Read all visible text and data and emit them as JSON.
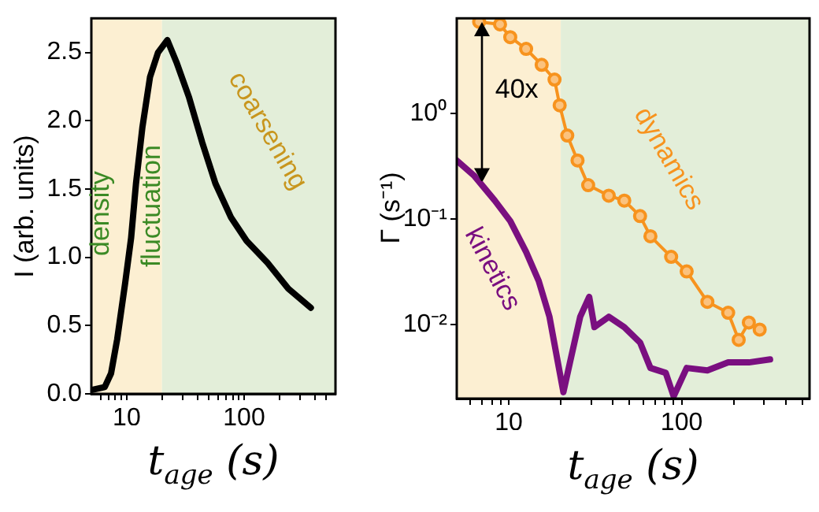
{
  "chart_data": [
    {
      "type": "line",
      "xlabel": "t$_{age}$ (s)",
      "ylabel": "I (arb. units)",
      "log": "x",
      "grid": false,
      "legend": false,
      "xlim": [
        5,
        600
      ],
      "ylim": [
        0,
        2.75
      ],
      "xticks": [
        {
          "value": 6,
          "label": null
        },
        {
          "value": 7,
          "label": null
        },
        {
          "value": 8,
          "label": null
        },
        {
          "value": 9,
          "label": null
        },
        {
          "value": 10,
          "label": "10"
        },
        {
          "value": 20,
          "label": null
        },
        {
          "value": 30,
          "label": null
        },
        {
          "value": 40,
          "label": null
        },
        {
          "value": 50,
          "label": null
        },
        {
          "value": 60,
          "label": null
        },
        {
          "value": 70,
          "label": null
        },
        {
          "value": 80,
          "label": null
        },
        {
          "value": 90,
          "label": null
        },
        {
          "value": 100,
          "label": "100"
        },
        {
          "value": 200,
          "label": null
        },
        {
          "value": 300,
          "label": null
        },
        {
          "value": 400,
          "label": null
        },
        {
          "value": 500,
          "label": null
        }
      ],
      "yticks": [
        {
          "value": 0,
          "label": "0.0"
        },
        0.5,
        {
          "value": 1,
          "label": "1.0"
        },
        1.5,
        {
          "value": 2,
          "label": "2.0"
        },
        2.5
      ],
      "bands": [
        {
          "axis": "x",
          "from": 5,
          "to": 20,
          "color": "#fcefd2"
        },
        {
          "axis": "x",
          "from": 20,
          "to": 600,
          "color": "#e3eed9"
        }
      ],
      "annotations": [
        "density",
        "fluctuation",
        "coarsening"
      ],
      "series": [
        {
          "color": "#000000",
          "marker": "none",
          "x": [
            5.1,
            6.5,
            7.36,
            8.3,
            9.7,
            10.9,
            12.0,
            13.6,
            15.8,
            18.5,
            22.2,
            26.5,
            34,
            44,
            57,
            77.5,
            105,
            158,
            238,
            370
          ],
          "values": [
            0.03,
            0.05,
            0.15,
            0.4,
            0.81,
            1.14,
            1.54,
            1.95,
            2.32,
            2.5,
            2.59,
            2.43,
            2.17,
            1.84,
            1.54,
            1.29,
            1.12,
            0.96,
            0.77,
            0.63
          ]
        }
      ]
    },
    {
      "type": "line",
      "xlabel": "t$_{age}$ (s)",
      "ylabel": "Γ (s⁻¹)",
      "log": "xy",
      "grid": false,
      "legend": false,
      "xlim": [
        5,
        550
      ],
      "ylim": [
        0.002,
        8
      ],
      "xticks": [
        {
          "value": 6,
          "label": null
        },
        {
          "value": 7,
          "label": null
        },
        {
          "value": 8,
          "label": null
        },
        {
          "value": 9,
          "label": null
        },
        {
          "value": 10,
          "label": "10"
        },
        {
          "value": 20,
          "label": null
        },
        {
          "value": 30,
          "label": null
        },
        {
          "value": 40,
          "label": null
        },
        {
          "value": 50,
          "label": null
        },
        {
          "value": 60,
          "label": null
        },
        {
          "value": 70,
          "label": null
        },
        {
          "value": 80,
          "label": null
        },
        {
          "value": 90,
          "label": null
        },
        {
          "value": 100,
          "label": "100"
        },
        {
          "value": 200,
          "label": null
        },
        {
          "value": 300,
          "label": null
        },
        {
          "value": 400,
          "label": null
        },
        {
          "value": 500,
          "label": null
        }
      ],
      "yticks": [
        {
          "value": 0.01,
          "label": "10⁻²"
        },
        {
          "value": 0.1,
          "label": "10⁻¹"
        },
        {
          "value": 1,
          "label": "10⁰"
        }
      ],
      "bands": [
        {
          "axis": "x",
          "from": 5,
          "to": 20,
          "color": "#fcefd2"
        },
        {
          "axis": "x",
          "from": 20,
          "to": 550,
          "color": "#e3eed9"
        }
      ],
      "annotations": [
        "40x"
      ],
      "series": [
        {
          "name": "kinetics",
          "color": "#7a0f80",
          "marker": "none",
          "x": [
            5.0,
            6.28,
            8.3,
            10.2,
            12.6,
            14.9,
            17.2,
            19.0,
            20.7,
            22.6,
            25.9,
            29.2,
            31.3,
            37.9,
            46.6,
            57.5,
            66,
            81,
            90,
            107,
            141,
            186,
            245,
            325
          ],
          "values": [
            0.36,
            0.26,
            0.15,
            0.096,
            0.049,
            0.026,
            0.0119,
            0.0049,
            0.0023,
            0.0044,
            0.0119,
            0.0184,
            0.0095,
            0.0119,
            0.0095,
            0.0068,
            0.0039,
            0.0035,
            0.0021,
            0.0039,
            0.0037,
            0.0044,
            0.0044,
            0.0047
          ]
        },
        {
          "name": "dynamics",
          "color": "#f7931e",
          "marker": "circle",
          "x": [
            6.74,
            8.9,
            10.2,
            12.6,
            15.5,
            18.4,
            19.7,
            21.8,
            25,
            28.8,
            37.9,
            46.6,
            57.5,
            66,
            87,
            107,
            141,
            186,
            214,
            245,
            283
          ],
          "values": [
            7.4,
            7.0,
            5.3,
            4.1,
            2.9,
            2.1,
            1.2,
            0.62,
            0.36,
            0.21,
            0.167,
            0.15,
            0.107,
            0.069,
            0.044,
            0.032,
            0.0165,
            0.013,
            0.0072,
            0.0105,
            0.009
          ]
        }
      ]
    }
  ]
}
